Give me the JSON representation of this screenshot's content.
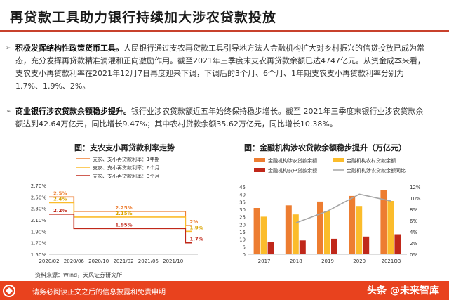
{
  "title": "再贷款工具助力银行持续加大涉农贷款投放",
  "bullets": [
    {
      "bold": "积极发挥结构性政策货币工具。",
      "text": "人民银行通过支农再贷款工具引导地方法人金融机构扩大对乡村振兴的信贷投放已成为常态，充分发挥再贷款精准滴灌和正向激励作用。截至2021年三季度末支农再贷款余额已达4747亿元。从资金成本来看，支农支小再贷款利率在2021年12月7日再度迎来下调，下调后的3个月、6个月、1年期支农支小再贷款利率分别为1.7%、1.9%、2%。"
    },
    {
      "bold": "商业银行涉农贷款余额稳步提升。",
      "text": "银行业涉农贷款额近五年始终保持稳步增长。截至 2021年三季度末银行业涉农贷款余额达到42.64万亿元，同比增长9.47%；其中农村贷款余额35.62万亿元，同比增长10.38%。"
    }
  ],
  "chart1_title": "图：支农支小再贷款利率走势",
  "chart2_title": "图：金融机构涉农贷款余额稳步提升（万亿元）",
  "source": "资料来源：Wind，天风证券研究所",
  "footer": "请务必阅读正文之后的信息披露和免责申明",
  "watermark": "头条 @未来智库",
  "colors": {
    "accent": "#c8412c",
    "footer": "#e8421e",
    "orange": "#ed7d31",
    "yellow": "#fbbc2b",
    "red": "#c0281a",
    "gray": "#a5a5a5"
  },
  "chart_data": [
    {
      "type": "line",
      "title": "图：支农支小再贷款利率走势",
      "x_ticks": [
        "2020/02",
        "2020/06",
        "2020/10",
        "2021/02",
        "2021/06",
        "2021/10"
      ],
      "y_ticks": [
        "2.70%",
        "2.50%",
        "2.30%",
        "2.10%",
        "1.90%",
        "1.70%",
        "1.50%"
      ],
      "ylim": [
        1.5,
        2.7
      ],
      "series": [
        {
          "name": "支农、支小再贷款利率：1年期",
          "color": "#ed7d31",
          "points": [
            [
              "2020/02",
              2.5
            ],
            [
              "2020/06",
              2.5
            ],
            [
              "2020/06",
              2.25
            ],
            [
              "2021/12",
              2.25
            ],
            [
              "2021/12",
              2.0
            ],
            [
              "2022/01",
              2.0
            ]
          ]
        },
        {
          "name": "支农、支小再贷款利率：6个月",
          "color": "#fbbc2b",
          "points": [
            [
              "2020/02",
              2.4
            ],
            [
              "2020/06",
              2.4
            ],
            [
              "2020/06",
              2.15
            ],
            [
              "2021/12",
              2.15
            ],
            [
              "2021/12",
              1.9
            ],
            [
              "2022/01",
              1.9
            ]
          ]
        },
        {
          "name": "支农、支小再贷款利率：3个月",
          "color": "#c0281a",
          "points": [
            [
              "2020/02",
              2.2
            ],
            [
              "2020/06",
              2.2
            ],
            [
              "2020/06",
              1.95
            ],
            [
              "2021/12",
              1.95
            ],
            [
              "2021/12",
              1.7
            ],
            [
              "2022/01",
              1.7
            ]
          ]
        }
      ],
      "labels": [
        {
          "text": "2.5%",
          "series": 0,
          "x": "2020/02",
          "y": 2.5
        },
        {
          "text": "2.4%",
          "series": 1,
          "x": "2020/02",
          "y": 2.4
        },
        {
          "text": "2.2%",
          "series": 2,
          "x": "2020/02",
          "y": 2.2
        },
        {
          "text": "2.25%",
          "series": 0,
          "x": "2020/12",
          "y": 2.25
        },
        {
          "text": "2.15%",
          "series": 1,
          "x": "2020/12",
          "y": 2.15
        },
        {
          "text": "1.95%",
          "series": 2,
          "x": "2020/12",
          "y": 1.95
        },
        {
          "text": "2%",
          "series": 0,
          "x": "2021/12",
          "y": 2.0
        },
        {
          "text": "1.9%",
          "series": 1,
          "x": "2021/12",
          "y": 1.9
        },
        {
          "text": "1.7%",
          "series": 2,
          "x": "2021/12",
          "y": 1.7
        }
      ]
    },
    {
      "type": "bar",
      "title": "图：金融机构涉农贷款余额稳步提升（万亿元）",
      "categories": [
        "2017",
        "2018",
        "2019",
        "2020",
        "2021Q3"
      ],
      "left_ticks": [
        "0",
        "5",
        "10",
        "15",
        "20",
        "25",
        "30",
        "35",
        "40",
        "45"
      ],
      "right_ticks": [
        "0%",
        "2%",
        "4%",
        "6%",
        "8%",
        "10%",
        "12%"
      ],
      "ylim": [
        0,
        45
      ],
      "y2lim": [
        0,
        12
      ],
      "bars": [
        {
          "name": "金融机构涉农贷款余额",
          "color": "#ed7d31",
          "values": [
            30.95,
            32.68,
            35.19,
            38.95,
            42.64
          ]
        },
        {
          "name": "金融机构农村贷款余额",
          "color": "#fbbc2b",
          "values": [
            25.14,
            26.64,
            28.84,
            32.27,
            35.62
          ]
        },
        {
          "name": "金融机构农户贷款余额",
          "color": "#c0281a",
          "values": [
            8.11,
            9.23,
            10.34,
            11.81,
            13.36
          ]
        }
      ],
      "line": {
        "name": "金融机构涉农贷款余额同比",
        "color": "#a5a5a5",
        "values": [
          null,
          5.6,
          7.7,
          10.7,
          9.47
        ]
      }
    }
  ]
}
